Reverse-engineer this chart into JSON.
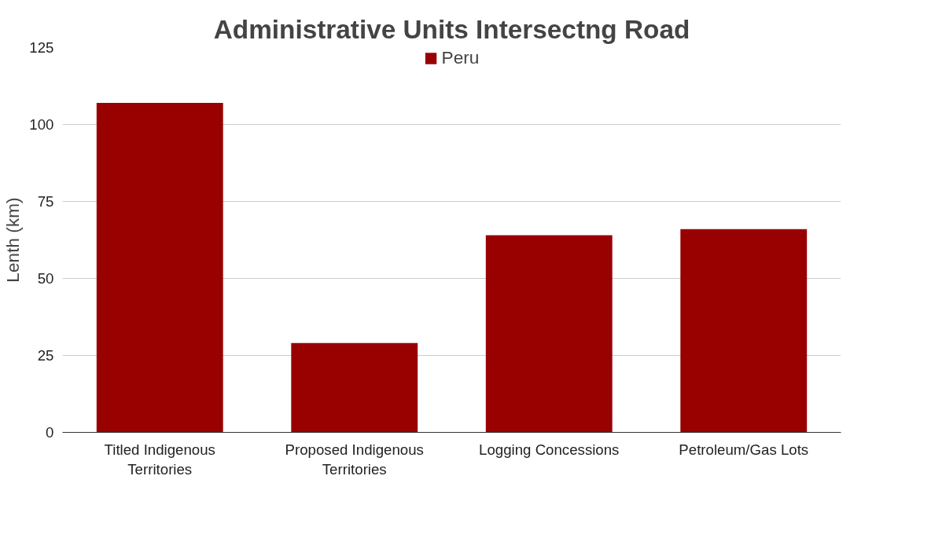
{
  "chart_data": {
    "type": "bar",
    "title": "Administrative Units Intersectng Road",
    "ylabel": "Lenth (km)",
    "categories": [
      "Titled Indigenous Territories",
      "Proposed Indigenous Territories",
      "Logging Concessions",
      "Petroleum/Gas Lots"
    ],
    "series": [
      {
        "name": "Peru",
        "color": "#990000",
        "values": [
          107,
          29,
          64,
          66
        ]
      }
    ],
    "ylim": [
      0,
      125
    ],
    "yticks": [
      0,
      25,
      50,
      75,
      100,
      125
    ],
    "grid": "y",
    "legend": "top"
  }
}
